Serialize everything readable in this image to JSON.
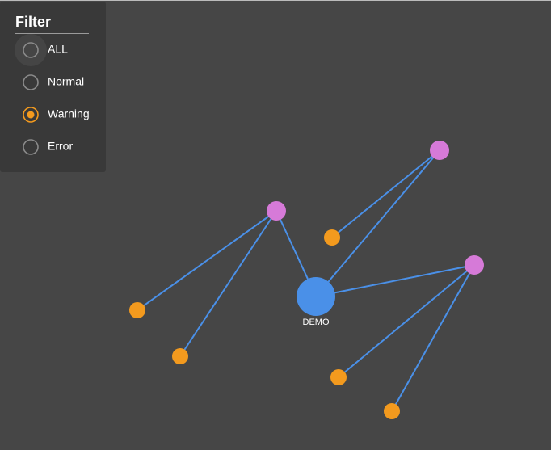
{
  "filter": {
    "title": "Filter",
    "options": [
      "ALL",
      "Normal",
      "Warning",
      "Error"
    ],
    "selected": 2
  },
  "graph": {
    "center_label": "DEMO"
  }
}
